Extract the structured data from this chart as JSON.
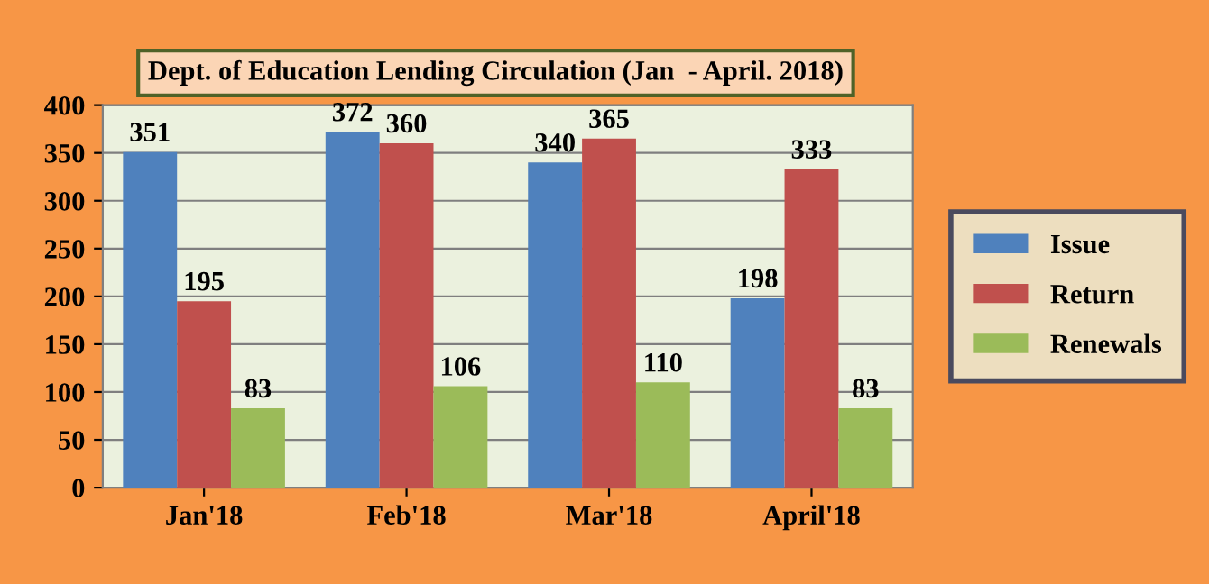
{
  "chart_data": {
    "type": "bar",
    "title": "Dept. of Education Lending Circulation (Jan  - April. 2018)",
    "categories": [
      "Jan'18",
      "Feb'18",
      "Mar'18",
      "April'18"
    ],
    "series": [
      {
        "name": "Issue",
        "color": "#4f81bd",
        "values": [
          351,
          372,
          340,
          198
        ]
      },
      {
        "name": "Return",
        "color": "#c0504d",
        "values": [
          195,
          360,
          365,
          333
        ]
      },
      {
        "name": "Renewals",
        "color": "#9bbb59",
        "values": [
          83,
          106,
          110,
          83
        ]
      }
    ],
    "ylim": [
      0,
      400
    ],
    "yticks": [
      0,
      50,
      100,
      150,
      200,
      250,
      300,
      350,
      400
    ],
    "grid": "y",
    "legend": "right",
    "data_labels": true
  }
}
